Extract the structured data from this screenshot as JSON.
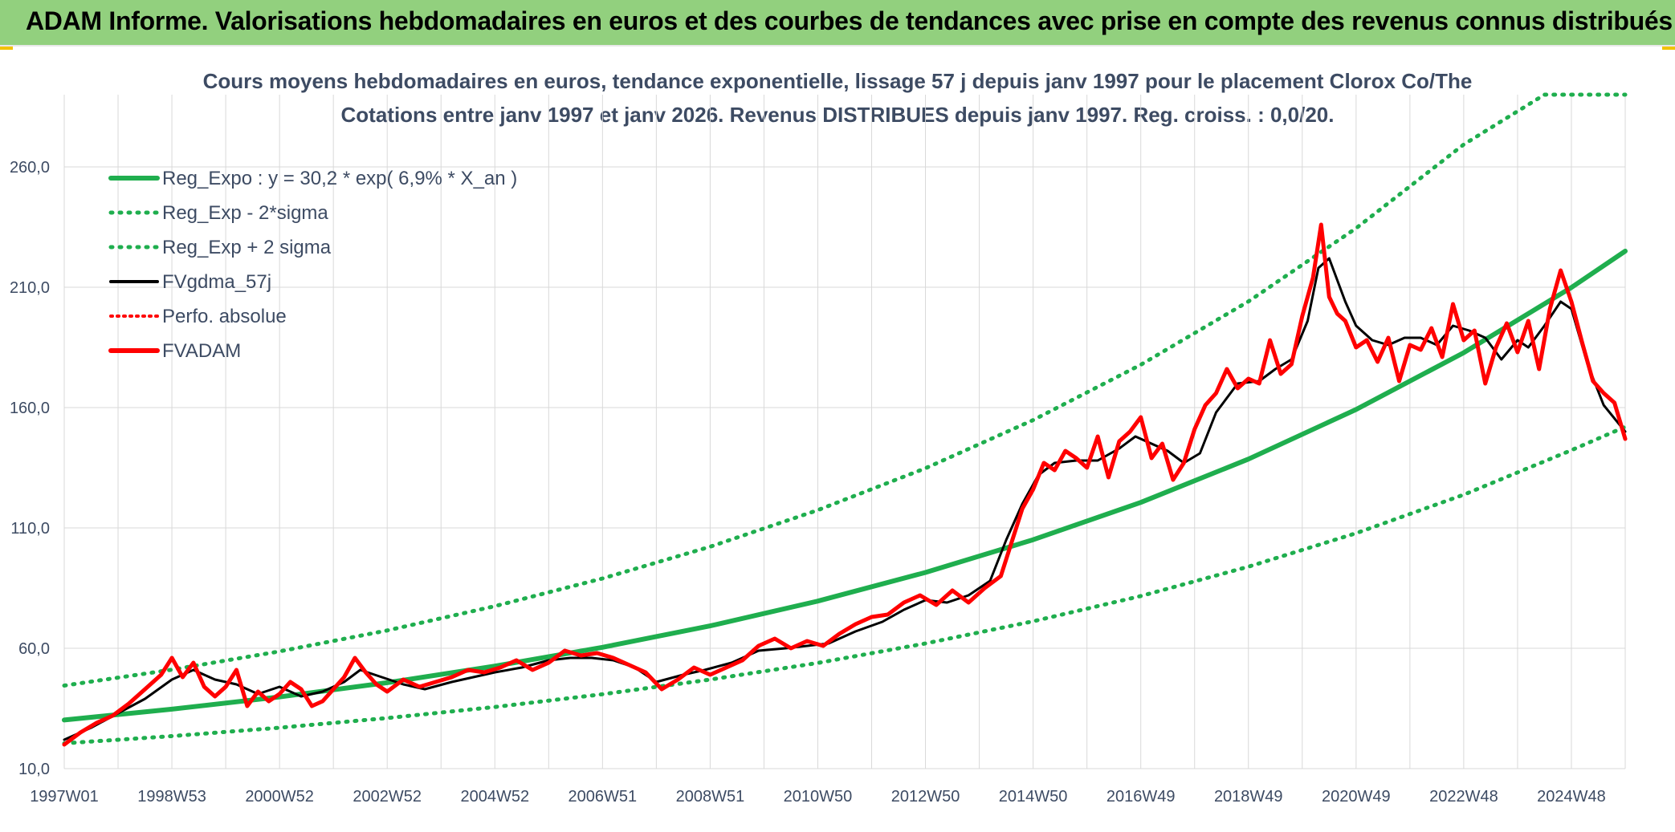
{
  "banner": {
    "title": "ADAM Informe. Valorisations hebdomadaires en euros et des courbes de tendances avec prise en compte des revenus connus distribués"
  },
  "colors": {
    "banner": "#92d07e",
    "trend": "#1fae4e",
    "smooth": "#000000",
    "price": "#ff0000",
    "grid": "#d9d9d9",
    "text": "#3d4b63"
  },
  "chart_data": {
    "type": "line",
    "title": "Cours moyens hebdomadaires en euros, tendance exponentielle, lissage 57 j depuis janv 1997 pour le placement Clorox Co/The",
    "subtitle": "Cotations entre janv 1997 et janv 2026. Revenus DISTRIBUES depuis janv 1997. Reg. croiss. : 0,0/20.",
    "y_ticks": [
      "10,0",
      "60,0",
      "110,0",
      "160,0",
      "210,0",
      "260,0"
    ],
    "x_ticks": [
      "1997W01",
      "1998W53",
      "2000W52",
      "2002W52",
      "2004W52",
      "2006W51",
      "2008W51",
      "2010W50",
      "2012W50",
      "2014W50",
      "2016W49",
      "2018W49",
      "2020W49",
      "2022W48",
      "2024W48"
    ],
    "ylim": [
      10,
      290
    ],
    "xlim": [
      1997.0,
      2026.0
    ],
    "grid": true,
    "legend_position": "top-left",
    "legend": [
      {
        "label": "Reg_Expo : y = 30,2 * exp( 6,9% *  X_an )",
        "color": "#1fae4e",
        "style": "solid"
      },
      {
        "label": "Reg_Exp - 2*sigma",
        "color": "#1fae4e",
        "style": "dotted"
      },
      {
        "label": "Reg_Exp + 2 sigma",
        "color": "#1fae4e",
        "style": "dotted"
      },
      {
        "label": "FVgdma_57j",
        "color": "#000000",
        "style": "solid"
      },
      {
        "label": "Perfo. absolue",
        "color": "#ff0000",
        "style": "dotted"
      },
      {
        "label": "FVADAM",
        "color": "#ff0000",
        "style": "solid"
      }
    ],
    "series": [
      {
        "name": "Reg_Expo : y = 30,2 * exp( 6,9% *  X_an )",
        "x": [
          1997.0,
          1999.0,
          2001.0,
          2003.0,
          2005.0,
          2007.0,
          2009.0,
          2011.0,
          2013.0,
          2015.0,
          2017.0,
          2019.0,
          2021.0,
          2023.0,
          2025.0,
          2026.0
        ],
        "values": [
          30.2,
          34.7,
          39.8,
          45.7,
          52.6,
          60.4,
          69.3,
          79.6,
          91.5,
          105.1,
          120.6,
          138.6,
          159.2,
          182.8,
          209.9,
          225.0
        ]
      },
      {
        "name": "Reg_Exp - 2*sigma",
        "x": [
          1997.0,
          1999.0,
          2001.0,
          2003.0,
          2005.0,
          2007.0,
          2009.0,
          2011.0,
          2013.0,
          2015.0,
          2017.0,
          2019.0,
          2021.0,
          2023.0,
          2025.0,
          2026.0
        ],
        "values": [
          20.5,
          23.5,
          27.0,
          31.0,
          35.6,
          40.9,
          47.0,
          53.9,
          62.0,
          71.2,
          81.7,
          93.9,
          107.8,
          123.8,
          142.3,
          152.0
        ]
      },
      {
        "name": "Reg_Exp + 2 sigma",
        "x": [
          1997.0,
          1999.0,
          2001.0,
          2003.0,
          2005.0,
          2007.0,
          2009.0,
          2011.0,
          2013.0,
          2015.0,
          2017.0,
          2019.0,
          2021.0,
          2023.0,
          2024.5,
          2026.0
        ],
        "values": [
          44.5,
          51.1,
          58.7,
          67.4,
          77.5,
          89.0,
          102.2,
          117.4,
          134.8,
          154.8,
          177.8,
          204.1,
          234.5,
          269.3,
          290.0,
          290.0
        ]
      },
      {
        "name": "FVgdma_57j",
        "x": [
          1997.0,
          1997.5,
          1998.0,
          1998.5,
          1999.0,
          1999.4,
          1999.8,
          2000.2,
          2000.6,
          2001.0,
          2001.4,
          2001.8,
          2002.2,
          2002.5,
          2002.9,
          2003.3,
          2003.7,
          2004.2,
          2004.6,
          2005.0,
          2005.5,
          2006.0,
          2006.4,
          2006.8,
          2007.2,
          2007.6,
          2008.0,
          2008.5,
          2008.9,
          2009.4,
          2009.9,
          2010.4,
          2010.8,
          2011.2,
          2011.7,
          2012.2,
          2012.6,
          2013.0,
          2013.4,
          2013.8,
          2014.2,
          2014.5,
          2014.8,
          2015.1,
          2015.4,
          2015.8,
          2016.2,
          2016.6,
          2016.9,
          2017.2,
          2017.5,
          2017.8,
          2018.1,
          2018.4,
          2018.8,
          2019.2,
          2019.5,
          2019.8,
          2020.1,
          2020.3,
          2020.5,
          2020.8,
          2021.0,
          2021.3,
          2021.6,
          2021.9,
          2022.2,
          2022.5,
          2022.8,
          2023.1,
          2023.4,
          2023.7,
          2024.0,
          2024.2,
          2024.5,
          2024.8,
          2025.0,
          2025.3,
          2025.6,
          2026.0
        ],
        "values": [
          22,
          27,
          33,
          39,
          47,
          51,
          47,
          45,
          41,
          44,
          40,
          42,
          46,
          51,
          48,
          45,
          43,
          46,
          48,
          50,
          52,
          55,
          56,
          56,
          55,
          52,
          46,
          49,
          51,
          54,
          59,
          60,
          61,
          62,
          67,
          71,
          76,
          80,
          79,
          82,
          88,
          105,
          120,
          132,
          137,
          138,
          138,
          143,
          148,
          145,
          142,
          137,
          141,
          158,
          170,
          171,
          176,
          180,
          196,
          218,
          222,
          204,
          194,
          188,
          186,
          189,
          189,
          186,
          194,
          192,
          189,
          180,
          188,
          185,
          194,
          204,
          201,
          178,
          161,
          150
        ]
      },
      {
        "name": "FVADAM",
        "x": [
          1997.0,
          1997.3,
          1997.6,
          1997.9,
          1998.2,
          1998.5,
          1998.8,
          1999.0,
          1999.2,
          1999.4,
          1999.6,
          1999.8,
          2000.0,
          2000.2,
          2000.4,
          2000.6,
          2000.8,
          2001.0,
          2001.2,
          2001.4,
          2001.6,
          2001.8,
          2002.0,
          2002.2,
          2002.4,
          2002.6,
          2002.8,
          2003.0,
          2003.3,
          2003.6,
          2003.9,
          2004.2,
          2004.5,
          2004.8,
          2005.1,
          2005.4,
          2005.7,
          2006.0,
          2006.3,
          2006.6,
          2006.9,
          2007.2,
          2007.5,
          2007.8,
          2008.1,
          2008.4,
          2008.7,
          2009.0,
          2009.3,
          2009.6,
          2009.9,
          2010.2,
          2010.5,
          2010.8,
          2011.1,
          2011.4,
          2011.7,
          2012.0,
          2012.3,
          2012.6,
          2012.9,
          2013.2,
          2013.5,
          2013.8,
          2014.1,
          2014.4,
          2014.6,
          2014.8,
          2015.0,
          2015.2,
          2015.4,
          2015.6,
          2015.8,
          2016.0,
          2016.2,
          2016.4,
          2016.6,
          2016.8,
          2017.0,
          2017.2,
          2017.4,
          2017.6,
          2017.8,
          2018.0,
          2018.2,
          2018.4,
          2018.6,
          2018.8,
          2019.0,
          2019.2,
          2019.4,
          2019.6,
          2019.8,
          2020.0,
          2020.2,
          2020.35,
          2020.5,
          2020.65,
          2020.8,
          2021.0,
          2021.2,
          2021.4,
          2021.6,
          2021.8,
          2022.0,
          2022.2,
          2022.4,
          2022.6,
          2022.8,
          2023.0,
          2023.2,
          2023.4,
          2023.6,
          2023.8,
          2024.0,
          2024.2,
          2024.4,
          2024.6,
          2024.8,
          2025.0,
          2025.2,
          2025.4,
          2025.6,
          2025.8,
          2026.0
        ],
        "values": [
          20,
          25,
          29,
          32,
          37,
          43,
          49,
          56,
          48,
          54,
          44,
          40,
          44,
          51,
          36,
          42,
          38,
          41,
          46,
          43,
          36,
          38,
          43,
          48,
          56,
          50,
          45,
          42,
          47,
          44,
          46,
          48,
          51,
          50,
          52,
          55,
          51,
          54,
          59,
          57,
          58,
          56,
          53,
          50,
          43,
          47,
          52,
          49,
          52,
          55,
          61,
          64,
          60,
          63,
          61,
          66,
          70,
          73,
          74,
          79,
          82,
          78,
          84,
          79,
          85,
          90,
          104,
          118,
          126,
          137,
          134,
          142,
          139,
          135,
          148,
          131,
          146,
          150,
          156,
          139,
          145,
          130,
          137,
          151,
          161,
          166,
          176,
          168,
          172,
          170,
          188,
          174,
          178,
          198,
          214,
          236,
          206,
          199,
          196,
          185,
          188,
          179,
          189,
          171,
          186,
          184,
          193,
          181,
          203,
          188,
          192,
          170,
          185,
          195,
          183,
          196,
          176,
          201,
          217,
          204,
          187,
          171,
          166,
          162,
          147
        ]
      }
    ]
  }
}
